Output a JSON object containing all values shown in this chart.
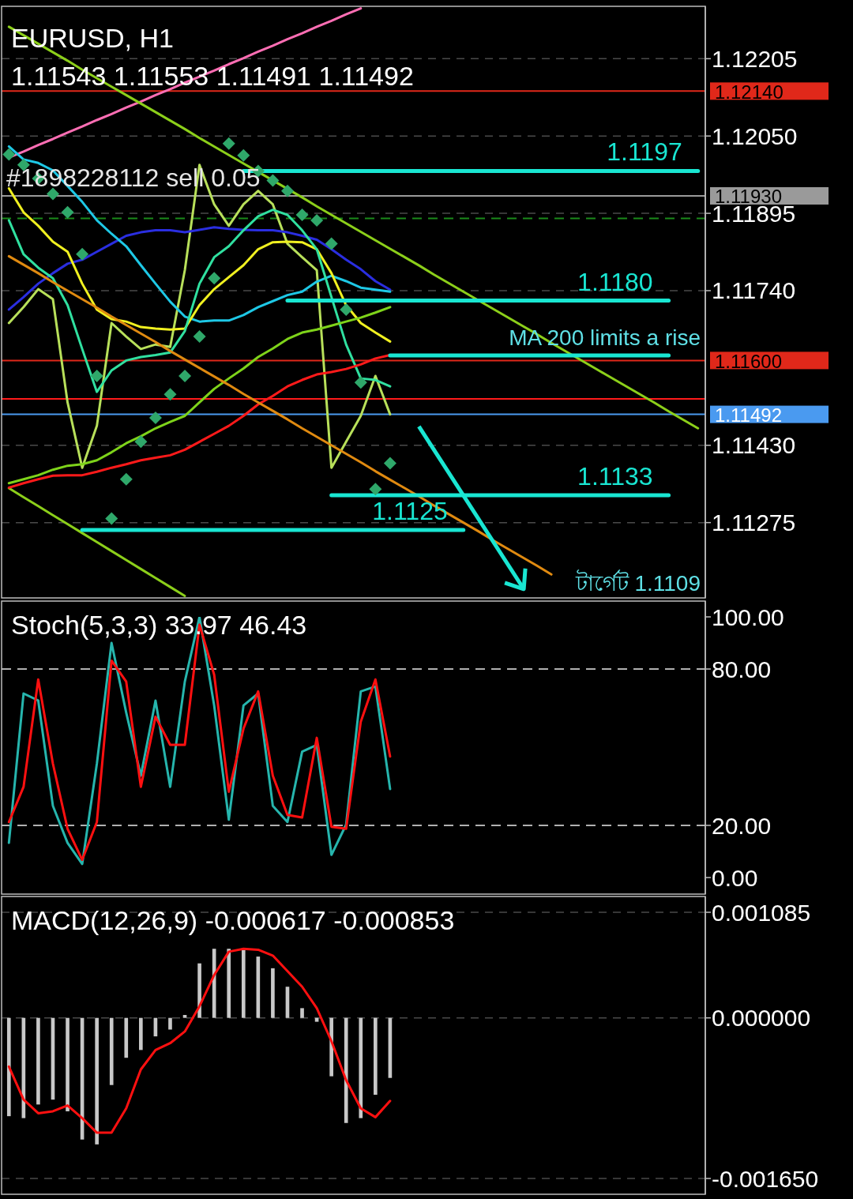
{
  "chart_data": [
    {
      "type": "line",
      "title": "EURUSD, H1",
      "subtitle": "1.11543 1.11553 1.11491 1.11492",
      "categories": [
        null,
        null,
        null,
        null,
        null,
        null,
        null,
        null,
        null,
        null,
        null,
        null,
        null,
        null,
        null,
        null,
        null,
        null,
        null,
        null,
        null,
        null,
        null,
        null,
        null,
        null,
        null,
        null,
        null,
        null,
        null,
        null,
        null,
        null,
        null,
        null,
        null,
        null,
        null,
        null,
        null,
        null,
        null,
        null,
        null,
        null,
        null,
        null
      ],
      "ylim": [
        1.11124,
        1.1231
      ],
      "yticks": [
        {
          "value": 1.12205,
          "label": "1.12205"
        },
        {
          "value": 1.1205,
          "label": "1.12050"
        },
        {
          "value": 1.11895,
          "label": "1.11895"
        },
        {
          "value": 1.1174,
          "label": "1.11740"
        },
        {
          "value": 1.1143,
          "label": "1.11430"
        },
        {
          "value": 1.11275,
          "label": "1.11275"
        }
      ],
      "grid": "y",
      "ref_lines": [
        {
          "axis": "y",
          "value": 1.1214,
          "color": "#e0281a",
          "label": "1.12140"
        },
        {
          "axis": "y",
          "value": 1.1193,
          "color": "#9a9a9a",
          "label": "1.11930"
        },
        {
          "axis": "y",
          "value": 1.11885,
          "color": "#1a8a1a",
          "line_style": "dashed"
        },
        {
          "axis": "y",
          "value": 1.116,
          "color": "#e0281a",
          "label": "1.11600"
        },
        {
          "axis": "y",
          "value": 1.11523,
          "color": "#ff1a1a"
        },
        {
          "axis": "y",
          "value": 1.11492,
          "color": "#4a9af0",
          "label": "1.11492"
        }
      ],
      "series": [
        {
          "type": "line",
          "color": "#ff6eb4",
          "values": [
            1.12007,
            1.12019,
            1.12032,
            1.12044,
            1.12057,
            1.12069,
            1.12082,
            1.12094,
            1.12107,
            1.12119,
            1.12132,
            1.12144,
            1.12157,
            1.12169,
            1.12181,
            1.12194,
            1.12206,
            1.12219,
            1.12231,
            1.12244,
            1.12256,
            1.12269,
            1.12281,
            1.12294,
            1.12306,
            null,
            null,
            null,
            null,
            null,
            null,
            null,
            null,
            null,
            null,
            null,
            null,
            null,
            null,
            null,
            null,
            null,
            null,
            null,
            null,
            null,
            null,
            null
          ]
        },
        {
          "type": "line",
          "color": "#8ccf1a",
          "values": [
            1.12269,
            1.12252,
            1.12235,
            1.12218,
            1.12201,
            1.12183,
            1.12166,
            1.12149,
            1.12132,
            1.12115,
            1.12098,
            1.12081,
            1.12064,
            1.12046,
            1.12029,
            1.12012,
            1.11995,
            1.11978,
            1.11961,
            1.11944,
            1.11927,
            1.11909,
            1.11892,
            1.11875,
            1.11858,
            1.11841,
            1.11824,
            1.11807,
            1.1179,
            1.11772,
            1.11755,
            1.11738,
            1.11721,
            1.11704,
            1.11687,
            1.1167,
            1.11653,
            1.11635,
            1.11618,
            1.11601,
            1.11584,
            1.11567,
            1.1155,
            1.11533,
            1.11516,
            1.11498,
            1.11481,
            1.11464
          ]
        },
        {
          "type": "line",
          "color": "#8ccf1a",
          "values": [
            1.11344,
            1.11326,
            1.11308,
            1.1129,
            1.11272,
            1.11254,
            1.11236,
            1.11218,
            1.112,
            1.11182,
            1.11164,
            1.11146,
            1.11128,
            null,
            null,
            null,
            null,
            null,
            null,
            null,
            null,
            null,
            null,
            null,
            null,
            null,
            null,
            null,
            null,
            null,
            null,
            null,
            null,
            null,
            null,
            null,
            null,
            null,
            null,
            null,
            null,
            null,
            null,
            null,
            null,
            null,
            null,
            null
          ]
        },
        {
          "color": "#b8e05a",
          "values": [
            1.11675,
            1.11707,
            1.11743,
            1.11723,
            1.11516,
            1.11385,
            1.11469,
            1.11675,
            1.11648,
            1.11623,
            1.11632,
            1.11627,
            1.11781,
            1.11992,
            1.11913,
            1.1187,
            1.11913,
            1.1194,
            1.11913,
            1.11834,
            1.11807,
            1.11781,
            1.11385,
            1.11437,
            1.11489,
            1.11569,
            1.11492,
            null,
            null,
            null,
            null,
            null,
            null,
            null,
            null,
            null,
            null,
            null,
            null,
            null,
            null,
            null,
            null,
            null,
            null,
            null,
            null,
            null
          ]
        },
        {
          "type": "line",
          "color": "#2a2ee0",
          "values": [
            1.11702,
            1.11727,
            1.11754,
            1.11775,
            1.11794,
            1.11802,
            1.11818,
            1.11834,
            1.1185,
            1.11857,
            1.11861,
            1.11861,
            1.11857,
            1.11862,
            1.11867,
            1.11864,
            1.11862,
            1.11861,
            1.11861,
            1.11857,
            1.1185,
            1.11842,
            1.11823,
            1.11802,
            1.11783,
            1.11759,
            1.11742,
            null,
            null,
            null,
            null,
            null,
            null,
            null,
            null,
            null,
            null,
            null,
            null,
            null,
            null,
            null,
            null,
            null,
            null,
            null,
            null,
            null
          ]
        },
        {
          "type": "line",
          "color": "#1ec8e6",
          "values": [
            1.12029,
            1.12003,
            1.11996,
            1.11981,
            1.1195,
            1.11918,
            1.11881,
            1.11854,
            1.11829,
            1.11791,
            1.11754,
            1.11718,
            1.11688,
            1.11678,
            1.1168,
            1.1168,
            1.11691,
            1.11707,
            1.11719,
            1.11731,
            1.11738,
            1.11758,
            1.1177,
            1.11759,
            1.11746,
            1.11742,
            1.11738,
            null,
            null,
            null,
            null,
            null,
            null,
            null,
            null,
            null,
            null,
            null,
            null,
            null,
            null,
            null,
            null,
            null,
            null,
            null,
            null,
            null
          ]
        },
        {
          "type": "line",
          "color": "#f0f020",
          "values": [
            1.11945,
            1.11897,
            1.1187,
            1.11838,
            1.11818,
            1.11754,
            1.11702,
            1.11683,
            1.11678,
            1.11667,
            1.11664,
            1.11662,
            1.11664,
            1.11711,
            1.11743,
            1.11767,
            1.11791,
            1.11823,
            1.11837,
            1.11838,
            1.11837,
            1.11823,
            1.11775,
            1.11711,
            1.11675,
            1.11656,
            1.11638,
            null,
            null,
            null,
            null,
            null,
            null,
            null,
            null,
            null,
            null,
            null,
            null,
            null,
            null,
            null,
            null,
            null,
            null,
            null,
            null,
            null
          ]
        },
        {
          "type": "line",
          "color": "#30e0a0",
          "values": [
            1.11881,
            1.11813,
            1.11786,
            1.11765,
            1.11711,
            1.11623,
            1.11537,
            1.1158,
            1.116,
            1.11607,
            1.11611,
            1.11616,
            1.11659,
            1.11754,
            1.11807,
            1.11829,
            1.11861,
            1.11889,
            1.11902,
            1.11892,
            1.11861,
            1.11823,
            1.11727,
            1.11632,
            1.11564,
            1.11561,
            1.11548,
            null,
            null,
            null,
            null,
            null,
            null,
            null,
            null,
            null,
            null,
            null,
            null,
            null,
            null,
            null,
            null,
            null,
            null,
            null,
            null,
            null
          ]
        },
        {
          "type": "line",
          "color": "#7ed31a",
          "values": [
            1.11354,
            1.11362,
            1.1137,
            1.11381,
            1.11389,
            1.11392,
            1.114,
            1.11416,
            1.11434,
            1.11448,
            1.11464,
            1.11477,
            1.11489,
            1.11516,
            1.11543,
            1.11564,
            1.11584,
            1.11607,
            1.11624,
            1.11643,
            1.11656,
            1.11662,
            1.1167,
            1.11678,
            1.11686,
            1.11696,
            1.11707,
            null,
            null,
            null,
            null,
            null,
            null,
            null,
            null,
            null,
            null,
            null,
            null,
            null,
            null,
            null,
            null,
            null,
            null,
            null,
            null,
            null
          ]
        },
        {
          "type": "line",
          "color": "#ff1a1a",
          "values": [
            1.11345,
            1.11354,
            1.11362,
            1.11369,
            1.1137,
            1.1137,
            1.11377,
            1.11385,
            1.11392,
            1.114,
            1.11405,
            1.1141,
            1.11421,
            1.11437,
            1.11453,
            1.11469,
            1.11489,
            1.11512,
            1.11529,
            1.11548,
            1.11561,
            1.11572,
            1.11577,
            1.11583,
            1.11592,
            1.11604,
            1.11611,
            null,
            null,
            null,
            null,
            null,
            null,
            null,
            null,
            null,
            null,
            null,
            null,
            null,
            null,
            null,
            null,
            null,
            null,
            null,
            null,
            null
          ]
        },
        {
          "type": "line",
          "color": "#e08a10",
          "values": [
            1.11809,
            1.11792,
            1.11775,
            1.11757,
            1.1174,
            1.11723,
            1.11706,
            1.11688,
            1.11671,
            1.11654,
            1.11637,
            1.11619,
            1.11602,
            1.11585,
            1.11568,
            1.11551,
            1.11533,
            1.11516,
            1.11499,
            1.11482,
            1.11464,
            1.11447,
            1.1143,
            1.11413,
            1.11396,
            1.11378,
            1.11361,
            1.11344,
            1.11327,
            1.11309,
            1.11292,
            1.11275,
            1.11258,
            1.1124,
            1.11223,
            1.11206,
            1.11189,
            1.11171,
            null,
            null,
            null,
            null,
            null,
            null,
            null,
            null,
            null,
            null
          ]
        },
        {
          "type": "scatter",
          "marker": "diamond",
          "color": "#2fa86a",
          "values": [
            1.12013,
            1.11992,
            1.11965,
            1.11934,
            1.11897,
            1.11813,
            1.11569,
            1.11283,
            1.11362,
            1.11437,
            1.11485,
            1.11532,
            1.11569,
            1.11648,
            1.11765,
            1.12035,
            1.12011,
            1.1198,
            1.11961,
            1.1194,
            1.11892,
            1.11881,
            1.11834,
            1.11702,
            1.11556,
            1.11342,
            1.11394,
            null,
            null,
            null,
            null,
            null,
            null,
            null,
            null,
            null,
            null,
            null,
            null,
            null,
            null,
            null,
            null,
            null,
            null,
            null,
            null,
            null
          ]
        },
        {
          "type": "line",
          "name": "1.1197",
          "color": "#19e6d2",
          "values": [
            null,
            null,
            null,
            null,
            null,
            null,
            null,
            null,
            null,
            null,
            null,
            null,
            null,
            null,
            null,
            null,
            1.1198,
            1.1198,
            1.1198,
            1.1198,
            1.1198,
            1.1198,
            1.1198,
            1.1198,
            1.1198,
            1.1198,
            1.1198,
            1.1198,
            1.1198,
            1.1198,
            1.1198,
            1.1198,
            1.1198,
            1.1198,
            1.1198,
            1.1198,
            1.1198,
            1.1198,
            1.1198,
            1.1198,
            1.1198,
            1.1198,
            1.1198,
            1.1198,
            1.1198,
            1.1198,
            1.1198,
            1.1198
          ]
        },
        {
          "type": "line",
          "name": "1.1180",
          "color": "#19e6d2",
          "values": [
            null,
            null,
            null,
            null,
            null,
            null,
            null,
            null,
            null,
            null,
            null,
            null,
            null,
            null,
            null,
            null,
            null,
            null,
            null,
            1.1172,
            1.1172,
            1.1172,
            1.1172,
            1.1172,
            1.1172,
            1.1172,
            1.1172,
            1.1172,
            1.1172,
            1.1172,
            1.1172,
            1.1172,
            1.1172,
            1.1172,
            1.1172,
            1.1172,
            1.1172,
            1.1172,
            1.1172,
            1.1172,
            1.1172,
            1.1172,
            1.1172,
            1.1172,
            1.1172,
            1.1172,
            null,
            null
          ]
        },
        {
          "type": "line",
          "color": "#19e6d2",
          "values": [
            null,
            null,
            null,
            null,
            null,
            null,
            null,
            null,
            null,
            null,
            null,
            null,
            null,
            null,
            null,
            null,
            null,
            null,
            null,
            null,
            null,
            null,
            null,
            null,
            null,
            null,
            1.1161,
            1.1161,
            1.1161,
            1.1161,
            1.1161,
            1.1161,
            1.1161,
            1.1161,
            1.1161,
            1.1161,
            1.1161,
            1.1161,
            1.1161,
            1.1161,
            1.1161,
            1.1161,
            1.1161,
            1.1161,
            1.1161,
            1.1161,
            null,
            null
          ]
        },
        {
          "type": "line",
          "name": "1.1133",
          "color": "#19e6d2",
          "values": [
            null,
            null,
            null,
            null,
            null,
            null,
            null,
            null,
            null,
            null,
            null,
            null,
            null,
            null,
            null,
            null,
            null,
            null,
            null,
            null,
            null,
            null,
            1.1133,
            1.1133,
            1.1133,
            1.1133,
            1.1133,
            1.1133,
            1.1133,
            1.1133,
            1.1133,
            1.1133,
            1.1133,
            1.1133,
            1.1133,
            1.1133,
            1.1133,
            1.1133,
            1.1133,
            1.1133,
            1.1133,
            1.1133,
            1.1133,
            1.1133,
            1.1133,
            1.1133,
            null,
            null
          ]
        },
        {
          "type": "line",
          "name": "1.1125",
          "color": "#19e6d2",
          "values": [
            null,
            null,
            null,
            null,
            null,
            1.1126,
            1.1126,
            1.1126,
            1.1126,
            1.1126,
            1.1126,
            1.1126,
            1.1126,
            1.1126,
            1.1126,
            1.1126,
            1.1126,
            1.1126,
            1.1126,
            1.1126,
            1.1126,
            1.1126,
            1.1126,
            1.1126,
            1.1126,
            1.1126,
            1.1126,
            1.1126,
            1.1126,
            1.1126,
            1.1126,
            1.1126,
            null,
            null,
            null,
            null,
            null,
            null,
            null,
            null,
            null,
            null,
            null,
            null,
            null,
            null,
            null,
            null
          ]
        }
      ],
      "annotations": [
        "#1898228112 sell 0.05",
        "MA 200 limits a rise",
        "টার্গেট 1.1109"
      ]
    },
    {
      "type": "line",
      "title": "Stoch(5,3,3) 33.97 46.43",
      "categories": [
        null,
        null,
        null,
        null,
        null,
        null,
        null,
        null,
        null,
        null,
        null,
        null,
        null,
        null,
        null,
        null,
        null,
        null,
        null,
        null,
        null,
        null,
        null,
        null,
        null,
        null,
        null,
        null,
        null,
        null,
        null,
        null,
        null,
        null,
        null,
        null,
        null,
        null,
        null,
        null,
        null,
        null,
        null,
        null,
        null,
        null,
        null,
        null
      ],
      "ylim": [
        0,
        100
      ],
      "yticks": [
        {
          "value": 0,
          "label": "0.00"
        },
        {
          "value": 20,
          "label": "20.00"
        },
        {
          "value": 80,
          "label": "80.00"
        },
        {
          "value": 100,
          "label": "100.00"
        }
      ],
      "ref_lines": [
        {
          "axis": "y",
          "value": 80,
          "color": "#b0b0b0",
          "line_style": "dashed"
        },
        {
          "axis": "y",
          "value": 20,
          "color": "#b0b0b0",
          "line_style": "dashed"
        }
      ],
      "series": [
        {
          "color": "#26b5ad",
          "values": [
            13.3,
            70.6,
            67.9,
            27.5,
            13.3,
            5.2,
            43.7,
            90,
            63.3,
            39.1,
            67.9,
            34.8,
            75.2,
            100,
            66,
            22.2,
            66,
            70.6,
            27.5,
            21.3,
            48.3,
            50.9,
            8.7,
            20.3,
            71.4,
            73.3,
            33.97,
            null,
            null,
            null,
            null,
            null,
            null,
            null,
            null,
            null,
            null,
            null,
            null,
            null,
            null,
            null,
            null,
            null,
            null,
            null,
            null,
            null
          ]
        },
        {
          "color": "#ff1010",
          "values": [
            21.3,
            34.8,
            76,
            43.7,
            18.7,
            6.8,
            21.3,
            83.2,
            75.2,
            34.8,
            61.7,
            50.9,
            50.9,
            97,
            77.8,
            32.9,
            57.1,
            71.4,
            39.1,
            24,
            23,
            53.6,
            19.5,
            18.7,
            59.8,
            76,
            46.43,
            null,
            null,
            null,
            null,
            null,
            null,
            null,
            null,
            null,
            null,
            null,
            null,
            null,
            null,
            null,
            null,
            null,
            null,
            null,
            null,
            null
          ]
        }
      ]
    },
    {
      "type": "bar",
      "title": "MACD(12,26,9) -0.000617 -0.000853",
      "categories": [
        null,
        null,
        null,
        null,
        null,
        null,
        null,
        null,
        null,
        null,
        null,
        null,
        null,
        null,
        null,
        null,
        null,
        null,
        null,
        null,
        null,
        null,
        null,
        null,
        null,
        null,
        null,
        null,
        null,
        null,
        null,
        null,
        null,
        null,
        null,
        null,
        null,
        null,
        null,
        null,
        null,
        null,
        null,
        null,
        null,
        null,
        null,
        null
      ],
      "ylim": [
        -0.00165,
        0.001085
      ],
      "yticks": [
        {
          "value": -0.00165,
          "label": "-0.001650"
        },
        {
          "value": 0,
          "label": "0.000000"
        },
        {
          "value": 0.001085,
          "label": "0.001085"
        }
      ],
      "grid": "y",
      "series": [
        {
          "color": "#c8c8c8",
          "values": [
            -0.00101,
            -0.00103,
            -0.00089,
            -0.00084,
            -0.00096,
            -0.00125,
            -0.0013,
            -0.00069,
            -0.00041,
            -0.00033,
            -0.00019,
            -0.00012,
            3e-05,
            0.00056,
            0.00071,
            0.00071,
            0.00071,
            0.00063,
            0.00051,
            0.00032,
            0.0001,
            -4e-05,
            -0.0006,
            -0.00108,
            -0.00103,
            -0.00079,
            -0.000617,
            null,
            null,
            null,
            null,
            null,
            null,
            null,
            null,
            null,
            null,
            null,
            null,
            null,
            null,
            null,
            null,
            null,
            null,
            null,
            null,
            null
          ]
        },
        {
          "type": "line",
          "color": "#ff1010",
          "values": [
            -0.0005,
            -0.00084,
            -0.00098,
            -0.00096,
            -0.0009,
            -0.00103,
            -0.00118,
            -0.00118,
            -0.00093,
            -0.00053,
            -0.00033,
            -0.00026,
            -0.00014,
            0.00012,
            0.00044,
            0.00068,
            0.00071,
            0.0007,
            0.00064,
            0.00048,
            0.00032,
            0.0001,
            -0.00024,
            -0.00064,
            -0.00093,
            -0.00102,
            -0.000853,
            null,
            null,
            null,
            null,
            null,
            null,
            null,
            null,
            null,
            null,
            null,
            null,
            null,
            null,
            null,
            null,
            null,
            null,
            null,
            null,
            null
          ]
        }
      ]
    }
  ]
}
